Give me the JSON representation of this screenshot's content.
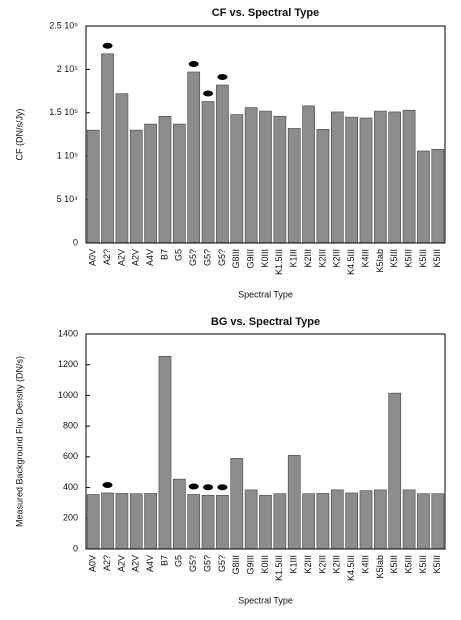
{
  "chart_data": [
    {
      "type": "bar",
      "title": "CF vs. Spectral Type",
      "x_label": "Spectral Type",
      "y_label": "CF (DN/s/Jy)",
      "categories": [
        "A0V",
        "A2?",
        "A2V",
        "A2V",
        "A4V",
        "B7",
        "G5",
        "G5?",
        "G5?",
        "G5?",
        "G8III",
        "G9III",
        "K0III",
        "K1.5III",
        "K1III",
        "K2III",
        "K2III",
        "K2III",
        "K4.5III",
        "K4III",
        "K5Iab",
        "K5III",
        "K5III",
        "K5III",
        "K5III"
      ],
      "values": [
        130000,
        218000,
        172000,
        130000,
        137000,
        146000,
        137000,
        197000,
        163000,
        182000,
        148000,
        156000,
        152000,
        146000,
        132000,
        158000,
        131000,
        151000,
        145000,
        144000,
        152000,
        151000,
        153000,
        106000,
        108000
      ],
      "color": "#8c8c8c",
      "marker_indices": [
        1,
        7,
        8,
        9
      ],
      "ylim": [
        0,
        250000
      ],
      "yticks": [
        0,
        {
          "value": 50000,
          "label": "5 10⁴"
        },
        {
          "value": 100000,
          "label": "1 10⁵"
        },
        {
          "value": 150000,
          "label": "1.5 10⁵"
        },
        {
          "value": 200000,
          "label": "2 10⁵"
        },
        {
          "value": 250000,
          "label": "2.5 10⁵"
        }
      ]
    },
    {
      "type": "bar",
      "title": "BG vs. Spectral Type",
      "x_label": "Spectral Type",
      "y_label": "Measured Background Flux Density (DN/s)",
      "categories": [
        "A0V",
        "A2?",
        "A2V",
        "A2V",
        "A4V",
        "B7",
        "G5",
        "G5?",
        "G5?",
        "G5?",
        "G8III",
        "G9III",
        "K0III",
        "K1.5III",
        "K1III",
        "K2III",
        "K2III",
        "K2III",
        "K4.5III",
        "K4III",
        "K5Iab",
        "K5III",
        "K5III",
        "K5III",
        "K5III"
      ],
      "values": [
        355,
        365,
        362,
        360,
        362,
        1255,
        455,
        355,
        350,
        350,
        590,
        385,
        350,
        360,
        610,
        360,
        362,
        385,
        365,
        380,
        385,
        1015,
        385,
        360,
        360
      ],
      "color": "#8c8c8c",
      "marker_indices": [
        1,
        7,
        8,
        9
      ],
      "ylim": [
        0,
        1400
      ],
      "yticks": [
        0,
        200,
        400,
        600,
        800,
        1000,
        1200,
        1400
      ]
    }
  ]
}
